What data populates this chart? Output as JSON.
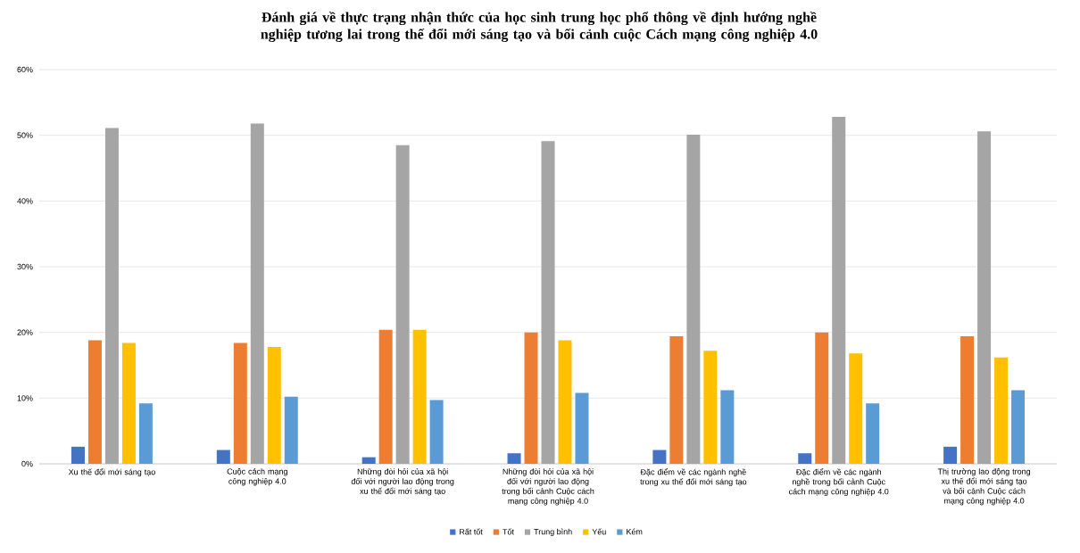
{
  "chart_data": {
    "type": "bar",
    "title": "Đánh giá về thực trạng nhận thức của học sinh trung học phổ thông về định hướng nghề nghiệp tương lai trong thế đổi mới sáng tạo và bối cảnh cuộc Cách mạng công nghiệp 4.0",
    "categories": [
      "Xu thế đổi mới sáng tạo",
      "Cuộc cách mạng công nghiệp 4.0",
      "Những đòi hỏi của xã hội đối với người lao động trong xu thế đổi mới sáng tạo",
      "Những đòi hỏi của xã hội đối với người lao động trong bối cảnh Cuộc cách mạng công nghiệp 4.0",
      "Đặc điểm về các ngành nghề trong xu thế đổi mới sáng tạo",
      "Đặc điểm về các ngành nghề trong bối cảnh Cuộc cách mạng công nghiệp 4.0",
      "Thị trường lao động trong xu thế đổi mới sáng tạo và bối cảnh Cuộc cách mạng công nghiệp 4.0"
    ],
    "series": [
      {
        "name": "Rất tốt",
        "color": "#4472c4",
        "values": [
          2.6,
          2.1,
          1.0,
          1.6,
          2.1,
          1.6,
          2.6
        ]
      },
      {
        "name": "Tốt",
        "color": "#ed7d31",
        "values": [
          18.8,
          18.4,
          20.4,
          20.0,
          19.4,
          20.0,
          19.4
        ]
      },
      {
        "name": "Trung bình",
        "color": "#a5a5a5",
        "values": [
          51.1,
          51.8,
          48.5,
          49.1,
          50.1,
          52.8,
          50.6
        ]
      },
      {
        "name": "Yếu",
        "color": "#ffc000",
        "values": [
          18.4,
          17.8,
          20.4,
          18.8,
          17.2,
          16.8,
          16.2
        ]
      },
      {
        "name": "Kém",
        "color": "#5b9bd5",
        "values": [
          9.2,
          10.2,
          9.7,
          10.8,
          11.2,
          9.2,
          11.2
        ]
      }
    ],
    "ylim": [
      0,
      60
    ],
    "yticks": [
      {
        "value": 0,
        "label": "0%"
      },
      {
        "value": 10,
        "label": "10%"
      },
      {
        "value": 20,
        "label": "20%"
      },
      {
        "value": 30,
        "label": "30%"
      },
      {
        "value": 40,
        "label": "40%"
      },
      {
        "value": 50,
        "label": "50%"
      },
      {
        "value": 60,
        "label": "60%"
      }
    ],
    "grid": "y",
    "legend": "bottom"
  }
}
